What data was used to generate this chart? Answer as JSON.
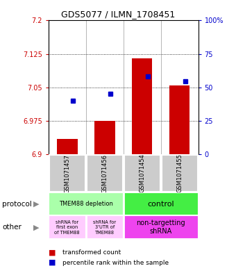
{
  "title": "GDS5077 / ILMN_1708451",
  "samples": [
    "GSM1071457",
    "GSM1071456",
    "GSM1071454",
    "GSM1071455"
  ],
  "red_values": [
    6.935,
    6.975,
    7.115,
    7.055
  ],
  "blue_values": [
    7.02,
    7.035,
    7.075,
    7.063
  ],
  "ylim_left": [
    6.9,
    7.2
  ],
  "ylim_right": [
    0,
    100
  ],
  "yticks_left": [
    6.9,
    6.975,
    7.05,
    7.125,
    7.2
  ],
  "yticks_right": [
    0,
    25,
    50,
    75,
    100
  ],
  "ytick_labels_left": [
    "6.9",
    "6.975",
    "7.05",
    "7.125",
    "7.2"
  ],
  "ytick_labels_right": [
    "0",
    "25",
    "50",
    "75",
    "100%"
  ],
  "left_color": "#cc0000",
  "right_color": "#0000cc",
  "bar_width": 0.55,
  "bar_base": 6.9,
  "protocol_light_green": "#aaffaa",
  "protocol_bright_green": "#44ee44",
  "other_light_pink": "#ffccff",
  "other_bright_pink": "#ee44ee",
  "sample_bg": "#cccccc",
  "grid_color": "black",
  "grid_lw": 0.6,
  "grid_ls": ":",
  "grid_vals": [
    6.975,
    7.05,
    7.125
  ],
  "legend_red_label": "transformed count",
  "legend_blue_label": "percentile rank within the sample",
  "protocol_label": "protocol",
  "other_label": "other"
}
